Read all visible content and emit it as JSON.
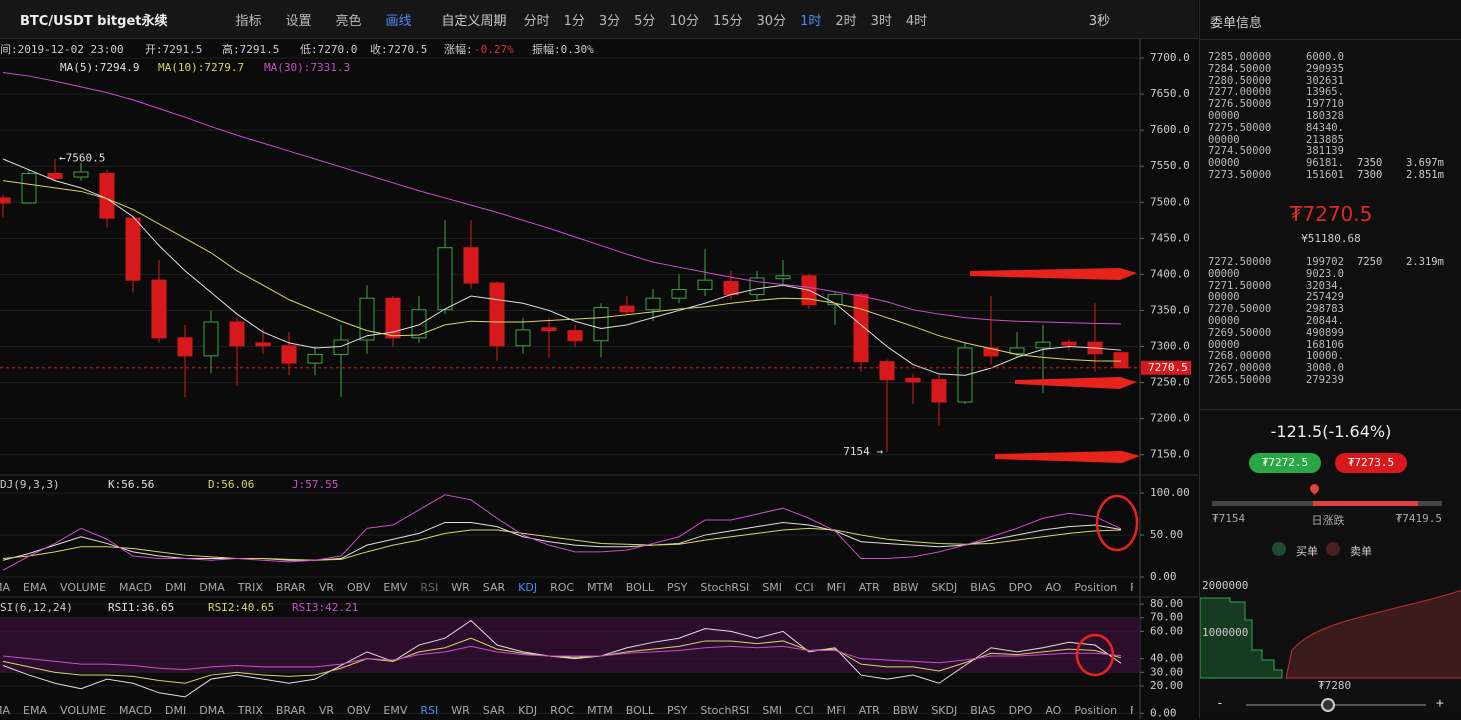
{
  "toolbar": {
    "symbol": "BTC/USDT bitget永续",
    "tools": [
      "指标",
      "设置",
      "亮色",
      "画线"
    ],
    "period_menu": "自定义周期",
    "periods": [
      "分时",
      "1分",
      "3分",
      "5分",
      "10分",
      "15分",
      "30分",
      "1时",
      "2时",
      "3时",
      "4时"
    ],
    "refresh": "3秒"
  },
  "chart": {
    "info": [
      "间:2019-12-02 23:00",
      "开:7291.5",
      "高:7291.5",
      "低:7270.0",
      "收:7270.5",
      "涨幅:",
      "-0.27%",
      "振幅:0.30%"
    ],
    "price": {
      "ylim": [
        7126,
        7725
      ],
      "yticks": [
        {
          "value": 7700,
          "label": "7700.0"
        },
        {
          "value": 7650,
          "label": "7650.0"
        },
        {
          "value": 7600,
          "label": "7600.0"
        },
        {
          "value": 7550,
          "label": "7550.0"
        },
        {
          "value": 7500,
          "label": "7500.0"
        },
        {
          "value": 7450,
          "label": "7450.0"
        },
        {
          "value": 7400,
          "label": "7400.0"
        },
        {
          "value": 7350,
          "label": "7350.0"
        },
        {
          "value": 7300,
          "label": "7300.0"
        },
        {
          "value": 7250,
          "label": "7250.0"
        },
        {
          "value": 7200,
          "label": "7200.0"
        },
        {
          "value": 7150,
          "label": "7150.0"
        }
      ],
      "up_color": "#3fa34d",
      "down_color": "#d7191c",
      "open": [
        7506,
        7499,
        7540,
        7535,
        7540,
        7478,
        7392,
        7312,
        7287,
        7334,
        7305,
        7301,
        7277,
        7289,
        7309,
        7367,
        7312,
        7351,
        7437,
        7388,
        7301,
        7326,
        7322,
        7308,
        7356,
        7351,
        7367,
        7379,
        7390,
        7372,
        7394,
        7398,
        7358,
        7372,
        7279,
        7256,
        7254,
        7223,
        7298,
        7290,
        7298,
        7306,
        7306,
        7291.5
      ],
      "high": [
        7510,
        7545,
        7560.5,
        7555,
        7545,
        7482,
        7420,
        7330,
        7350,
        7340,
        7325,
        7320,
        7300,
        7330,
        7385,
        7370,
        7370,
        7475,
        7475,
        7390,
        7340,
        7340,
        7330,
        7360,
        7370,
        7380,
        7400,
        7435,
        7405,
        7405,
        7420,
        7400,
        7375,
        7375,
        7282,
        7262,
        7262,
        7305,
        7370,
        7320,
        7330,
        7310,
        7360,
        7291.5
      ],
      "low": [
        7480,
        7498,
        7530,
        7530,
        7465,
        7375,
        7305,
        7230,
        7263,
        7245,
        7290,
        7260,
        7260,
        7230,
        7290,
        7300,
        7305,
        7345,
        7380,
        7280,
        7290,
        7285,
        7300,
        7285,
        7345,
        7335,
        7360,
        7370,
        7365,
        7365,
        7385,
        7352,
        7330,
        7265,
        7154,
        7220,
        7190,
        7220,
        7275,
        7285,
        7235,
        7295,
        7265,
        7270
      ],
      "close": [
        7499,
        7540,
        7533,
        7542,
        7478,
        7392,
        7312,
        7287,
        7334,
        7301,
        7301,
        7277,
        7289,
        7309,
        7367,
        7312,
        7351,
        7437,
        7388,
        7301,
        7323,
        7322,
        7308,
        7354,
        7348,
        7367,
        7379,
        7392,
        7372,
        7395,
        7398,
        7358,
        7372,
        7279,
        7254,
        7251,
        7223,
        7298,
        7287,
        7298,
        7306,
        7302,
        7290,
        7270.5
      ],
      "ma": [
        {
          "name": "MA(5):7294.9",
          "color": "#e0e0e0",
          "values": [
            7560,
            7545,
            7530,
            7520,
            7505,
            7480,
            7440,
            7405,
            7375,
            7345,
            7320,
            7305,
            7298,
            7300,
            7315,
            7320,
            7330,
            7352,
            7370,
            7365,
            7360,
            7350,
            7335,
            7325,
            7330,
            7340,
            7350,
            7360,
            7372,
            7380,
            7385,
            7378,
            7360,
            7330,
            7300,
            7275,
            7262,
            7260,
            7270,
            7285,
            7296,
            7300,
            7298,
            7294.9
          ]
        },
        {
          "name": "MA(10):7279.7",
          "color": "#d9d46a",
          "values": [
            7530,
            7525,
            7520,
            7515,
            7505,
            7490,
            7470,
            7450,
            7430,
            7405,
            7385,
            7365,
            7350,
            7335,
            7322,
            7315,
            7316,
            7330,
            7335,
            7334,
            7334,
            7336,
            7338,
            7340,
            7344,
            7348,
            7352,
            7355,
            7360,
            7364,
            7367,
            7366,
            7360,
            7352,
            7340,
            7328,
            7315,
            7305,
            7297,
            7289,
            7285,
            7282,
            7280,
            7279.7
          ]
        },
        {
          "name": "MA(30):7331.3",
          "color": "#c94fc9",
          "values": [
            7680,
            7675,
            7668,
            7660,
            7652,
            7642,
            7630,
            7618,
            7605,
            7593,
            7582,
            7571,
            7560,
            7549,
            7538,
            7527,
            7516,
            7506,
            7496,
            7486,
            7475,
            7464,
            7452,
            7440,
            7428,
            7417,
            7410,
            7403,
            7396,
            7390,
            7386,
            7382,
            7376,
            7370,
            7362,
            7351,
            7345,
            7340,
            7337,
            7335,
            7334,
            7333,
            7332,
            7331.3
          ]
        }
      ],
      "max_label": "←7560.5",
      "min_label": "7154 →",
      "last_label": "7270.5"
    },
    "kdj": {
      "title": "DJ(9,3,3)",
      "ylim": [
        0,
        118
      ],
      "yticks": [
        {
          "value": 100,
          "label": "100.00"
        },
        {
          "value": 50,
          "label": "50.00"
        },
        {
          "value": 0,
          "label": "0.00"
        }
      ],
      "series": [
        {
          "name": "K:56.56",
          "color": "#e0e0e0",
          "values": [
            20,
            28,
            38,
            48,
            40,
            30,
            25,
            22,
            22,
            22,
            22,
            20,
            20,
            22,
            38,
            45,
            52,
            65,
            65,
            60,
            48,
            42,
            38,
            36,
            36,
            38,
            40,
            50,
            55,
            60,
            65,
            62,
            55,
            42,
            40,
            38,
            36,
            38,
            44,
            50,
            56,
            60,
            62,
            56.56
          ]
        },
        {
          "name": "D:56.06",
          "color": "#d9d46a",
          "values": [
            22,
            25,
            30,
            36,
            36,
            34,
            30,
            26,
            24,
            22,
            22,
            21,
            20,
            21,
            30,
            38,
            44,
            52,
            56,
            56,
            52,
            48,
            44,
            40,
            39,
            38,
            39,
            44,
            48,
            52,
            56,
            58,
            56,
            50,
            45,
            42,
            40,
            39,
            40,
            44,
            48,
            52,
            55,
            56.06
          ]
        },
        {
          "name": "J:57.55",
          "color": "#c94fc9",
          "values": [
            8,
            25,
            40,
            58,
            45,
            25,
            22,
            22,
            20,
            22,
            20,
            18,
            20,
            25,
            58,
            62,
            80,
            98,
            92,
            70,
            50,
            38,
            30,
            30,
            32,
            40,
            48,
            68,
            68,
            75,
            82,
            70,
            55,
            22,
            22,
            24,
            30,
            38,
            48,
            58,
            70,
            76,
            72,
            57.55
          ]
        }
      ]
    },
    "tabs": [
      "MA",
      "EMA",
      "VOLUME",
      "MACD",
      "DMI",
      "DMA",
      "TRIX",
      "BRAR",
      "VR",
      "OBV",
      "EMV",
      "RSI",
      "WR",
      "SAR",
      "KDJ",
      "ROC",
      "MTM",
      "BOLL",
      "PSY",
      "StochRSI",
      "SMI",
      "CCI",
      "MFI",
      "ATR",
      "BBW",
      "SKDJ",
      "BIAS",
      "DPO",
      "AO",
      "Position",
      "Fundflow"
    ],
    "rsi": {
      "title": "SI(6,12,24)",
      "ylim": [
        -2,
        83
      ],
      "yticks": [
        {
          "value": 80,
          "label": "80.00"
        },
        {
          "value": 70,
          "label": "70.00"
        },
        {
          "value": 60,
          "label": "60.00"
        },
        {
          "value": 40,
          "label": "40.00"
        },
        {
          "value": 30,
          "label": "30.00"
        },
        {
          "value": 20,
          "label": "20.00"
        },
        {
          "value": 0,
          "label": "0.00"
        }
      ],
      "band": [
        30,
        70
      ],
      "series": [
        {
          "name": "RSI1:36.65",
          "color": "#e0e0e0",
          "values": [
            35,
            28,
            22,
            18,
            25,
            22,
            15,
            12,
            25,
            28,
            25,
            22,
            25,
            35,
            45,
            38,
            50,
            55,
            68,
            50,
            45,
            42,
            40,
            42,
            48,
            52,
            55,
            62,
            60,
            55,
            60,
            45,
            48,
            28,
            25,
            28,
            22,
            35,
            48,
            45,
            48,
            52,
            50,
            36.65
          ]
        },
        {
          "name": "RSI2:40.65",
          "color": "#d9d46a",
          "values": [
            38,
            34,
            30,
            28,
            28,
            27,
            24,
            22,
            28,
            30,
            28,
            27,
            28,
            33,
            40,
            38,
            45,
            48,
            55,
            47,
            44,
            42,
            41,
            42,
            45,
            47,
            49,
            53,
            53,
            51,
            53,
            46,
            47,
            36,
            34,
            34,
            31,
            37,
            44,
            43,
            45,
            47,
            46,
            40.65
          ]
        },
        {
          "name": "RSI3:42.21",
          "color": "#c94fc9",
          "values": [
            42,
            40,
            38,
            36,
            36,
            35,
            33,
            32,
            34,
            35,
            34,
            34,
            34,
            36,
            40,
            39,
            43,
            45,
            49,
            45,
            43,
            42,
            42,
            42,
            44,
            45,
            46,
            48,
            49,
            48,
            49,
            46,
            46,
            40,
            39,
            38,
            37,
            39,
            42,
            42,
            43,
            44,
            44,
            42.21
          ]
        }
      ]
    }
  },
  "orderbook": {
    "title": "委单信息",
    "asks": [
      [
        "7285.00000",
        "6000.0"
      ],
      [
        "7284.50000",
        "290935"
      ],
      [
        "7280.50000",
        "302631"
      ],
      [
        "7277.00000",
        "13965."
      ],
      [
        "7276.50000",
        "197710"
      ],
      [
        "00000",
        "180328"
      ],
      [
        "7275.50000",
        "84340."
      ],
      [
        "00000",
        "213885"
      ],
      [
        "7274.50000",
        "381139"
      ],
      [
        "00000",
        "96181.",
        "7350",
        "3.697m"
      ],
      [
        "7273.50000",
        "151601",
        "7300",
        "2.851m"
      ]
    ],
    "price": "₮7270.5",
    "cny": "¥51180.68",
    "bids": [
      [
        "7272.50000",
        "199702",
        "7250",
        "2.319m"
      ],
      [
        "00000",
        "9023.0"
      ],
      [
        "7271.50000",
        "32034."
      ],
      [
        "00000",
        "257429"
      ],
      [
        "7270.50000",
        "298783"
      ],
      [
        "00000",
        "20844."
      ],
      [
        "7269.50000",
        "490899"
      ],
      [
        "00000",
        "168106"
      ],
      [
        "7268.00000",
        "10000."
      ],
      [
        "7267.00000",
        "3000.0"
      ],
      [
        "7265.50000",
        "279239"
      ]
    ],
    "change": "-121.5(-1.64%)",
    "buy_button": "₮7272.5",
    "sell_button": "₮7273.5",
    "range_low": "₮7154",
    "range_label": "日涨跌",
    "range_high": "₮7419.5",
    "legend": [
      "买单",
      "卖单"
    ],
    "depth_ticks": [
      "2000000",
      "1000000"
    ],
    "depth_mid": "₮7280",
    "zoom": [
      "-",
      "+"
    ]
  }
}
